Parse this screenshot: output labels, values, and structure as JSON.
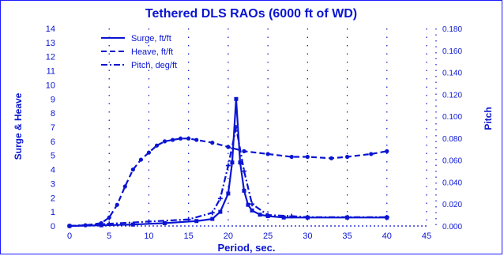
{
  "chart_data": {
    "type": "line",
    "title": "Tethered DLS RAOs (6000 ft of WD)",
    "xlabel": "Period, sec.",
    "ylabel_left": "Surge & Heave",
    "ylabel_right": "Pitch",
    "xlim": [
      0,
      45
    ],
    "ylim_left": [
      0,
      14
    ],
    "ylim_right": [
      0,
      0.18
    ],
    "x_ticks": [
      0,
      5,
      10,
      15,
      20,
      25,
      30,
      35,
      40,
      45
    ],
    "y_left_ticks": [
      0,
      1,
      2,
      3,
      4,
      5,
      6,
      7,
      8,
      9,
      10,
      11,
      12,
      13,
      14
    ],
    "y_right_ticks": [
      "0.000",
      "0.020",
      "0.040",
      "0.060",
      "0.080",
      "0.100",
      "0.120",
      "0.140",
      "0.160",
      "0.180"
    ],
    "grid": "dotted",
    "legend_position": "top-left",
    "series": [
      {
        "name": "Surge, ft/ft",
        "axis": "left",
        "style": "solid",
        "x": [
          0,
          4,
          8,
          12,
          16,
          18,
          19,
          20,
          20.5,
          21,
          21.5,
          22,
          22.5,
          23,
          24,
          25,
          27,
          30,
          35,
          40
        ],
        "y": [
          0,
          0.05,
          0.1,
          0.2,
          0.35,
          0.5,
          1.0,
          2.3,
          4.5,
          9.0,
          4.5,
          2.5,
          1.5,
          1.1,
          0.8,
          0.7,
          0.6,
          0.6,
          0.6,
          0.6
        ]
      },
      {
        "name": "Heave, ft/ft",
        "axis": "left",
        "style": "dashed",
        "x": [
          0,
          2,
          4,
          5,
          6,
          7,
          8,
          9,
          10,
          11,
          12,
          13,
          14,
          15,
          16,
          18,
          20,
          22,
          25,
          28,
          30,
          33,
          35,
          38,
          40
        ],
        "y": [
          0,
          0.05,
          0.2,
          0.6,
          1.5,
          2.8,
          4.0,
          4.7,
          5.2,
          5.7,
          6.0,
          6.1,
          6.2,
          6.2,
          6.1,
          5.9,
          5.6,
          5.3,
          5.1,
          4.9,
          4.9,
          4.8,
          4.9,
          5.1,
          5.3
        ]
      },
      {
        "name": "Pitch, deg/ft",
        "axis": "right",
        "style": "dash-dot",
        "x": [
          0,
          5,
          10,
          15,
          18,
          19,
          20,
          21,
          22,
          23,
          25,
          28,
          30,
          35,
          40
        ],
        "y": [
          0,
          0.002,
          0.004,
          0.006,
          0.012,
          0.025,
          0.055,
          0.09,
          0.05,
          0.02,
          0.01,
          0.009,
          0.008,
          0.008,
          0.008
        ]
      }
    ]
  }
}
